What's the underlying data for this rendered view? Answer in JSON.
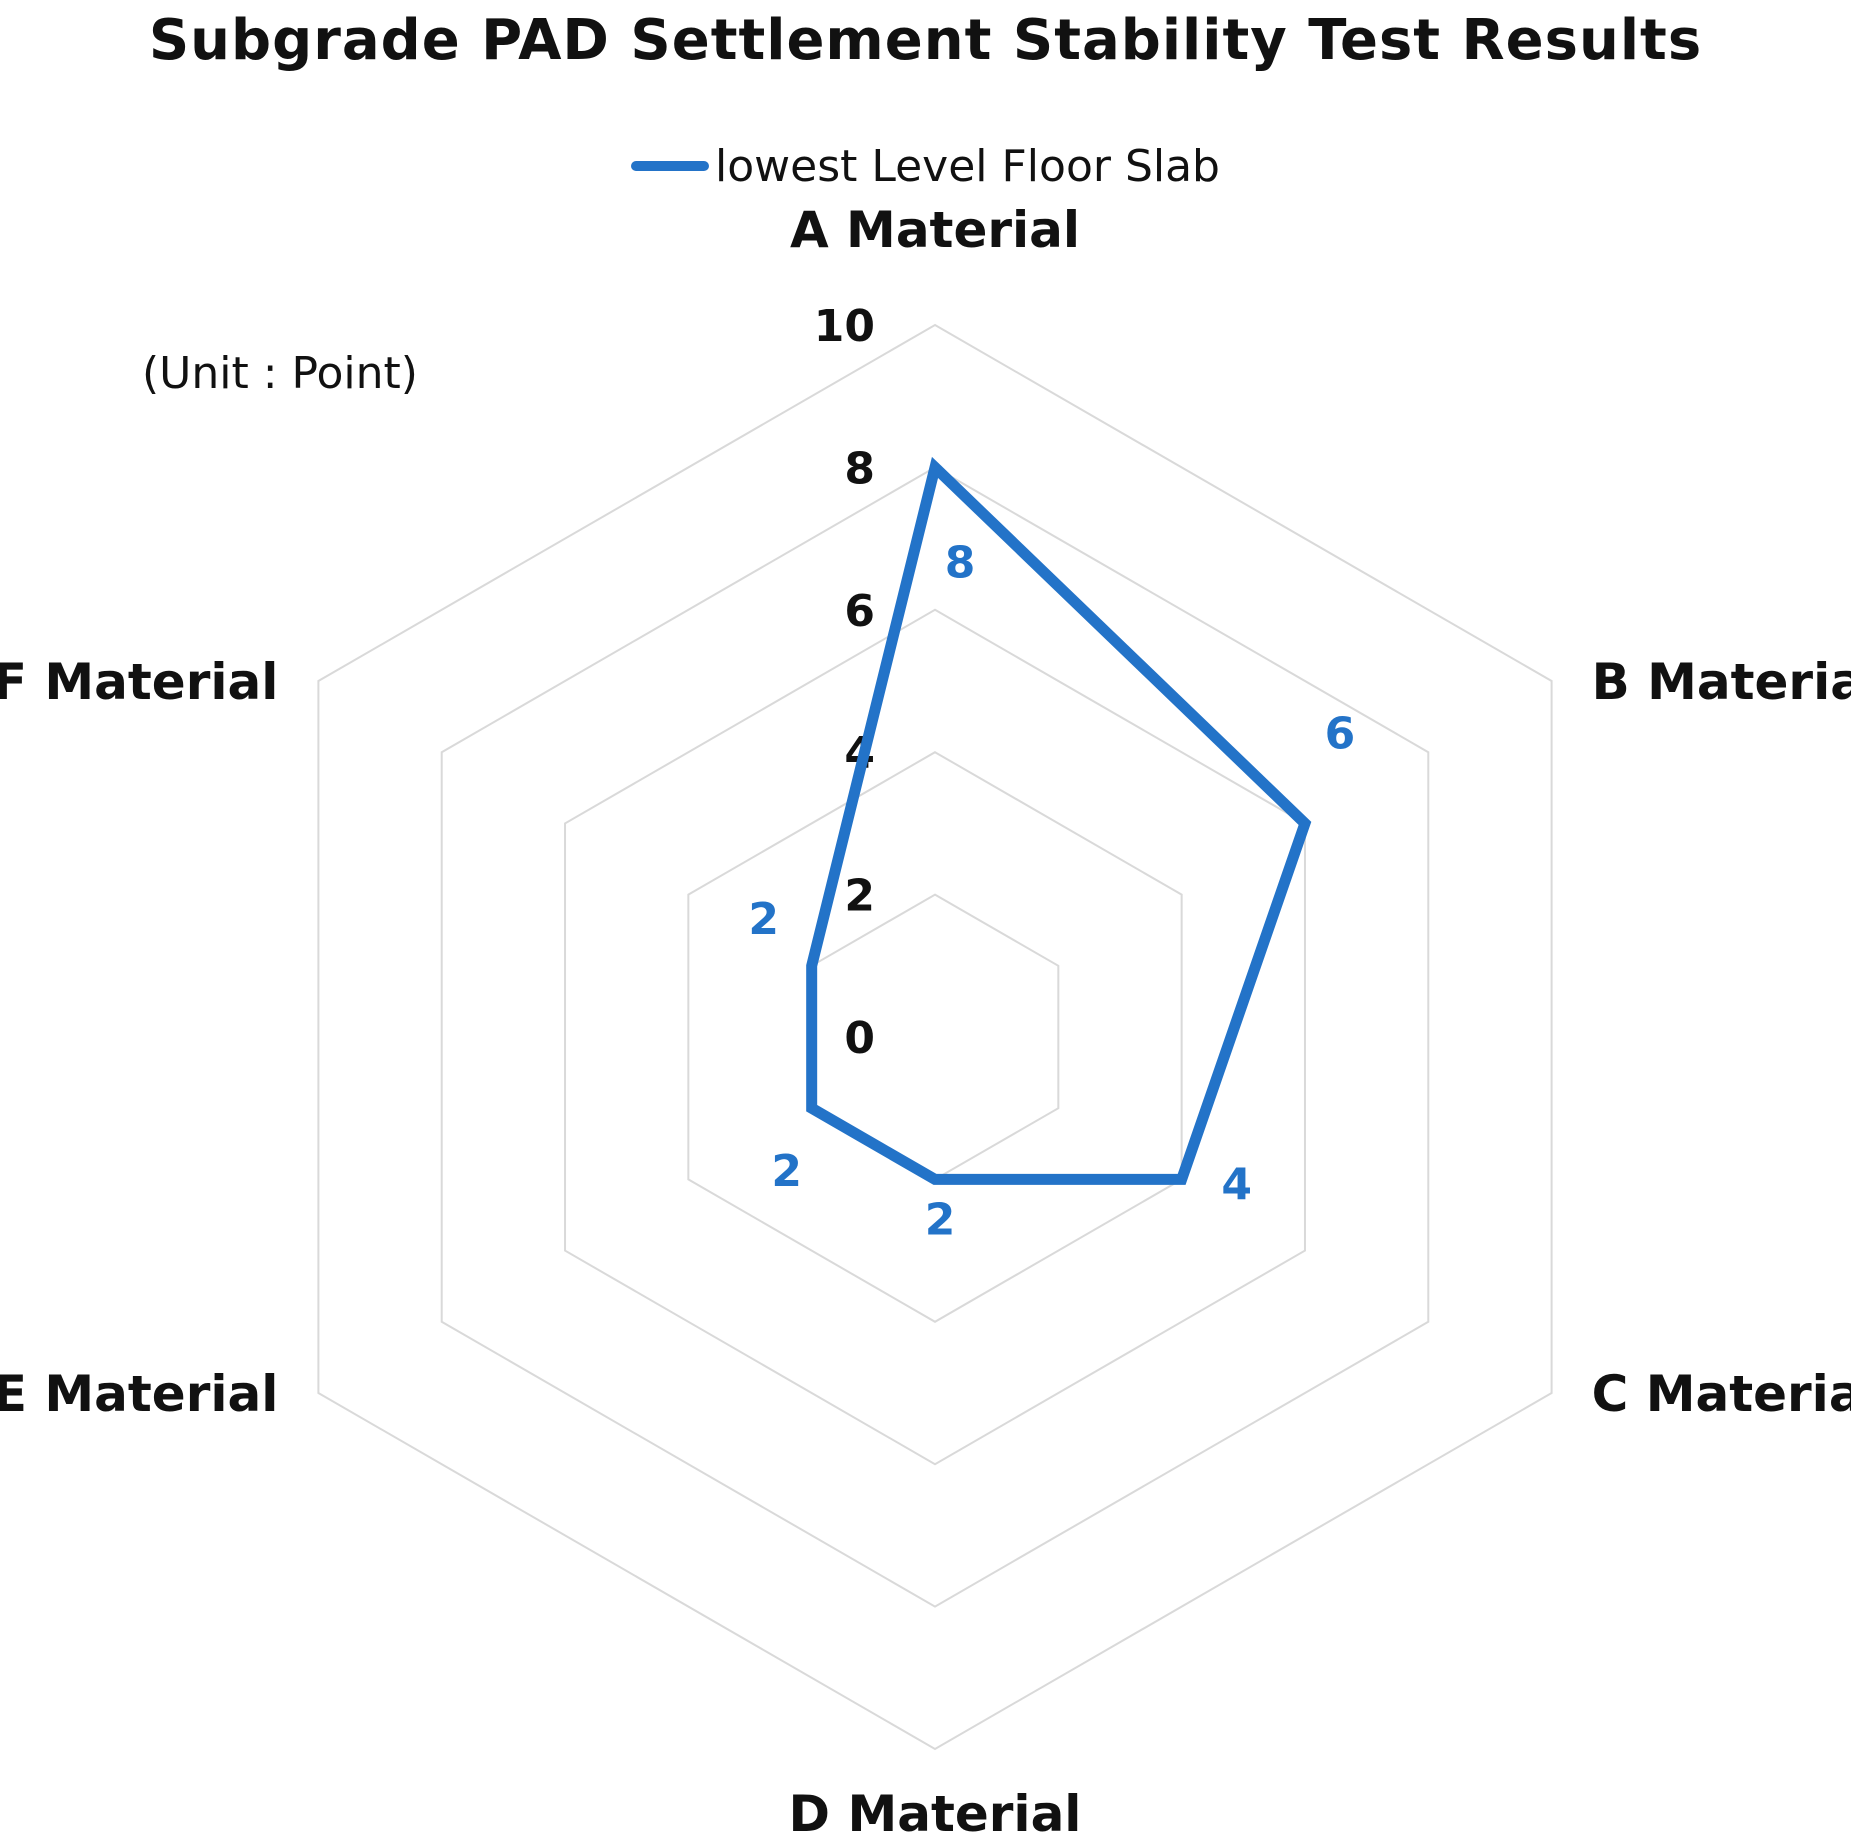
{
  "chart_data": {
    "type": "radar",
    "title": "Subgrade PAD Settlement Stability Test Results",
    "unit_note": "(Unit : Point)",
    "categories": [
      "A Material",
      "B Material",
      "C Material",
      "D Material",
      "E Material",
      "F Material"
    ],
    "series": [
      {
        "name": "lowest Level Floor Slab",
        "values": [
          8,
          6,
          4,
          2,
          2,
          2
        ],
        "color": "#2373c8"
      }
    ],
    "rlim": [
      0,
      10
    ],
    "ticks": [
      "0",
      "2",
      "4",
      "6",
      "8",
      "10"
    ],
    "grid": true,
    "grid_color": "#d9d9d9",
    "legend": "top"
  }
}
